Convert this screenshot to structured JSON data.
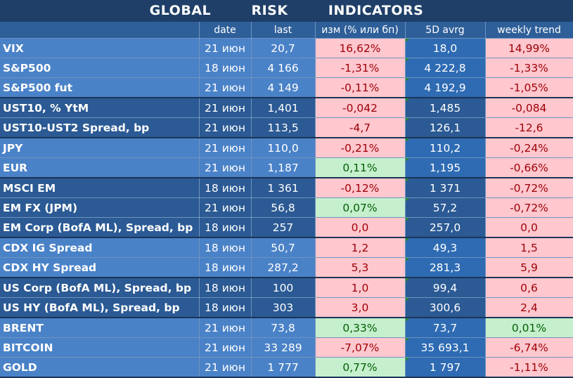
{
  "title": "GLOBAL   RISK   INDICATORS",
  "headers": [
    "",
    "date",
    "last",
    "изм (% или бп)",
    "5D avrg",
    "weekly trend"
  ],
  "rows": [
    {
      "name": "VIX",
      "date": "21 июн",
      "last": "20,7",
      "change": "16,62%",
      "change_sign": "neg",
      "avg": "18,0",
      "trend": "14,99%",
      "trend_sign": "neg",
      "group": "light",
      "end": false
    },
    {
      "name": "S&P500",
      "date": "18 июн",
      "last": "4 166",
      "change": "-1,31%",
      "change_sign": "neg",
      "avg": "4 222,8",
      "trend": "-1,33%",
      "trend_sign": "neg",
      "group": "light",
      "end": false
    },
    {
      "name": "S&P500 fut",
      "date": "21 июн",
      "last": "4 149",
      "change": "-0,11%",
      "change_sign": "neg",
      "avg": "4 192,9",
      "trend": "-1,05%",
      "trend_sign": "neg",
      "group": "light",
      "end": true
    },
    {
      "name": "UST10, % YtM",
      "date": "21 июн",
      "last": "1,401",
      "change": "-0,042",
      "change_sign": "neg",
      "avg": "1,485",
      "trend": "-0,084",
      "trend_sign": "neg",
      "group": "dark",
      "end": false
    },
    {
      "name": "UST10-UST2 Spread, bp",
      "date": "21 июн",
      "last": "113,5",
      "change": "-4,7",
      "change_sign": "neg",
      "avg": "126,1",
      "trend": "-12,6",
      "trend_sign": "neg",
      "group": "dark",
      "end": true
    },
    {
      "name": "JPY",
      "date": "21 июн",
      "last": "110,0",
      "change": "-0,21%",
      "change_sign": "neg",
      "avg": "110,2",
      "trend": "-0,24%",
      "trend_sign": "neg",
      "group": "light",
      "end": false
    },
    {
      "name": "EUR",
      "date": "21 июн",
      "last": "1,187",
      "change": "0,11%",
      "change_sign": "pos",
      "avg": "1,195",
      "trend": "-0,66%",
      "trend_sign": "neg",
      "group": "light",
      "end": true
    },
    {
      "name": "MSCI EM",
      "date": "18 июн",
      "last": "1 361",
      "change": "-0,12%",
      "change_sign": "neg",
      "avg": "1 371",
      "trend": "-0,72%",
      "trend_sign": "neg",
      "group": "dark",
      "end": false
    },
    {
      "name": "EM FX (JPM)",
      "date": "21 июн",
      "last": "56,8",
      "change": "0,07%",
      "change_sign": "pos",
      "avg": "57,2",
      "trend": "-0,72%",
      "trend_sign": "neg",
      "group": "dark",
      "end": false
    },
    {
      "name": "EM Corp (BofA ML), Spread, bp",
      "date": "18 июн",
      "last": "257",
      "change": "0,0",
      "change_sign": "neg",
      "avg": "257,0",
      "trend": "0,0",
      "trend_sign": "neg",
      "group": "dark",
      "end": true
    },
    {
      "name": "CDX IG Spread",
      "date": "18 июн",
      "last": "50,7",
      "change": "1,2",
      "change_sign": "neg",
      "avg": "49,3",
      "trend": "1,5",
      "trend_sign": "neg",
      "group": "light",
      "end": false
    },
    {
      "name": "CDX HY Spread",
      "date": "18 июн",
      "last": "287,2",
      "change": "5,3",
      "change_sign": "neg",
      "avg": "281,3",
      "trend": "5,9",
      "trend_sign": "neg",
      "group": "light",
      "end": true
    },
    {
      "name": "US Corp (BofA ML), Spread, bp",
      "date": "18 июн",
      "last": "100",
      "change": "1,0",
      "change_sign": "neg",
      "avg": "99,4",
      "trend": "0,6",
      "trend_sign": "neg",
      "group": "dark",
      "end": false
    },
    {
      "name": "US HY (BofA ML), Spread, bp",
      "date": "18 июн",
      "last": "303",
      "change": "3,0",
      "change_sign": "neg",
      "avg": "300,6",
      "trend": "2,4",
      "trend_sign": "neg",
      "group": "dark",
      "end": true
    },
    {
      "name": "BRENT",
      "date": "21 июн",
      "last": "73,8",
      "change": "0,33%",
      "change_sign": "pos",
      "avg": "73,7",
      "trend": "0,01%",
      "trend_sign": "pos",
      "group": "light",
      "end": false
    },
    {
      "name": "BITCOIN",
      "date": "21 июн",
      "last": "33 289",
      "change": "-7,07%",
      "change_sign": "neg",
      "avg": "35 693,1",
      "trend": "-6,74%",
      "trend_sign": "neg",
      "group": "light",
      "end": false
    },
    {
      "name": "GOLD",
      "date": "21 июн",
      "last": "1 777",
      "change": "0,77%",
      "change_sign": "pos",
      "avg": "1 797",
      "trend": "-1,11%",
      "trend_sign": "neg",
      "group": "light",
      "end": true
    }
  ]
}
